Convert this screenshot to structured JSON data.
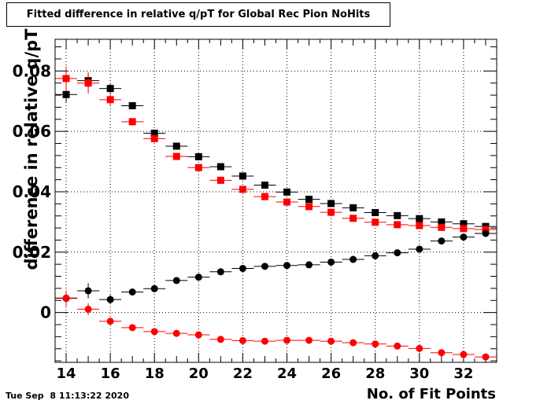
{
  "title": "Fitted difference in relative q/pT for Global Rec Pion NoHits",
  "timestamp": "Tue Sep  8 11:13:22 2020",
  "chart_data": {
    "type": "scatter",
    "title": "Fitted difference in relative q/pT for Global Rec Pion NoHits",
    "xlabel": "No. of Fit Points",
    "ylabel": "difference in relative q/pT",
    "xlim": [
      13.5,
      33.5
    ],
    "ylim": [
      -0.0165,
      0.0905
    ],
    "x_ticks": [
      14,
      16,
      18,
      20,
      22,
      24,
      26,
      28,
      30,
      32
    ],
    "y_ticks": [
      0,
      0.02,
      0.04,
      0.06,
      0.08
    ],
    "y_tick_labels": [
      "0",
      "0.02",
      "0.04",
      "0.06",
      "0.08"
    ],
    "grid": true,
    "series": [
      {
        "marker": "square",
        "color": "#000000",
        "x": [
          14,
          15,
          16,
          17,
          18,
          19,
          20,
          21,
          22,
          23,
          24,
          25,
          26,
          27,
          28,
          29,
          30,
          31,
          32,
          33
        ],
        "y": [
          0.0722,
          0.0768,
          0.0742,
          0.0685,
          0.0594,
          0.0551,
          0.0516,
          0.0483,
          0.0452,
          0.0422,
          0.0399,
          0.0375,
          0.0361,
          0.0347,
          0.0331,
          0.0321,
          0.0311,
          0.03,
          0.0294,
          0.0285
        ],
        "yerr": [
          0.0025,
          0.0025,
          0.0015,
          0.0012,
          0.001,
          0.0008,
          0.0006,
          0.0006,
          0.0005,
          0.0005,
          0.0004,
          0.0004,
          0.0004,
          0.0004,
          0.0004,
          0.0004,
          0.0004,
          0.0004,
          0.0004,
          0.0004
        ]
      },
      {
        "marker": "square",
        "color": "#ff0000",
        "x": [
          14,
          15,
          16,
          17,
          18,
          19,
          20,
          21,
          22,
          23,
          24,
          25,
          26,
          27,
          28,
          29,
          30,
          31,
          32,
          33
        ],
        "y": [
          0.0775,
          0.076,
          0.0705,
          0.0632,
          0.0576,
          0.0517,
          0.048,
          0.0438,
          0.0408,
          0.0384,
          0.0366,
          0.0351,
          0.0332,
          0.0312,
          0.0299,
          0.0291,
          0.0288,
          0.0282,
          0.0278,
          0.0275
        ],
        "yerr": [
          0.004,
          0.0035,
          0.002,
          0.0012,
          0.001,
          0.0008,
          0.0006,
          0.0006,
          0.0005,
          0.0005,
          0.0004,
          0.0004,
          0.0004,
          0.0004,
          0.0004,
          0.0004,
          0.0004,
          0.0004,
          0.0004,
          0.0004
        ]
      },
      {
        "marker": "circle",
        "color": "#000000",
        "x": [
          14,
          15,
          16,
          17,
          18,
          19,
          20,
          21,
          22,
          23,
          24,
          25,
          26,
          27,
          28,
          29,
          30,
          31,
          32,
          33
        ],
        "y": [
          0.0047,
          0.0072,
          0.0043,
          0.0068,
          0.0079,
          0.0106,
          0.0117,
          0.0135,
          0.0146,
          0.0153,
          0.0156,
          0.0158,
          0.0167,
          0.0176,
          0.0188,
          0.0198,
          0.021,
          0.0237,
          0.025,
          0.0262
        ],
        "yerr": [
          0.0025,
          0.0025,
          0.0015,
          0.001,
          0.0008,
          0.0007,
          0.0006,
          0.0005,
          0.0005,
          0.0005,
          0.0004,
          0.0004,
          0.0004,
          0.0004,
          0.0004,
          0.0004,
          0.0004,
          0.0004,
          0.0004,
          0.0004
        ]
      },
      {
        "marker": "circle",
        "color": "#ff0000",
        "x": [
          14,
          15,
          16,
          17,
          18,
          19,
          20,
          21,
          22,
          23,
          24,
          25,
          26,
          27,
          28,
          29,
          30,
          31,
          32,
          33
        ],
        "y": [
          0.0048,
          0.0011,
          -0.0029,
          -0.005,
          -0.0063,
          -0.0069,
          -0.0074,
          -0.0089,
          -0.0093,
          -0.0095,
          -0.0092,
          -0.0092,
          -0.0095,
          -0.01,
          -0.0104,
          -0.0111,
          -0.0119,
          -0.0133,
          -0.0139,
          -0.0147
        ],
        "yerr": [
          0.0025,
          0.002,
          0.0012,
          0.0008,
          0.0007,
          0.0006,
          0.0005,
          0.0005,
          0.0005,
          0.0005,
          0.0004,
          0.0004,
          0.0004,
          0.0004,
          0.0004,
          0.0004,
          0.0004,
          0.0004,
          0.0004,
          0.0004
        ]
      }
    ]
  }
}
